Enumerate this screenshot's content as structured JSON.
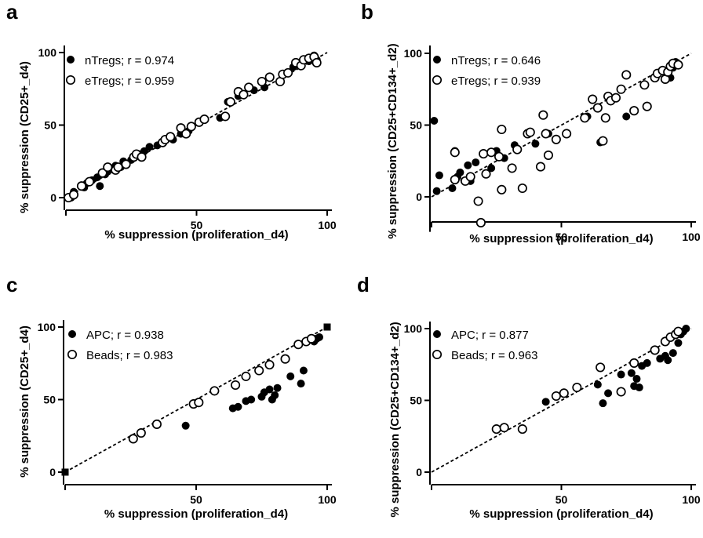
{
  "figure": {
    "panels": [
      {
        "letter": "a",
        "xlabel": "% suppression (proliferation_d4)",
        "ylabel": "% suppression (CD25+_d4)",
        "legend": [
          "nTregs; r = 0.974",
          "eTregs; r = 0.959"
        ]
      },
      {
        "letter": "b",
        "xlabel": "% suppression (proliferation_d4)",
        "ylabel": "% suppression (CD25+CD134+_d2)",
        "legend": [
          "nTregs; r = 0.646",
          "eTregs; r = 0.939"
        ]
      },
      {
        "letter": "c",
        "xlabel": "% suppression (proliferation_d4)",
        "ylabel": "% suppression (CD25+_d4)",
        "legend": [
          "APC; r = 0.938",
          "Beads; r = 0.983"
        ]
      },
      {
        "letter": "d",
        "xlabel": "% suppression (proliferation_d4)",
        "ylabel": "% suppression (CD25+CD134+_d2)",
        "legend": [
          "APC; r = 0.877",
          "Beads; r = 0.963"
        ]
      }
    ]
  },
  "chart_data": [
    {
      "type": "scatter",
      "panel": "a",
      "xlabel": "% suppression (proliferation_d4)",
      "ylabel": "% suppression (CD25+_d4)",
      "xlim": [
        0,
        100
      ],
      "ylim": [
        0,
        100
      ],
      "xticks": [
        0,
        50,
        100
      ],
      "yticks": [
        0,
        50,
        100
      ],
      "xtick_labels": [
        "50",
        "100"
      ],
      "ytick_labels": [
        "0",
        "50",
        "100"
      ],
      "legend_position": "top-left",
      "identity_line": true,
      "series": [
        {
          "name": "nTregs; r = 0.974",
          "marker": "filled-circle",
          "points": [
            [
              2,
              0
            ],
            [
              3,
              4
            ],
            [
              7,
              7
            ],
            [
              8,
              10
            ],
            [
              10,
              12
            ],
            [
              12,
              14
            ],
            [
              13,
              8
            ],
            [
              15,
              16
            ],
            [
              16,
              18
            ],
            [
              18,
              20
            ],
            [
              19,
              22
            ],
            [
              21,
              21
            ],
            [
              22,
              25
            ],
            [
              25,
              26
            ],
            [
              28,
              30
            ],
            [
              30,
              32
            ],
            [
              32,
              35
            ],
            [
              35,
              36
            ],
            [
              41,
              40
            ],
            [
              44,
              44
            ],
            [
              47,
              46
            ],
            [
              59,
              55
            ],
            [
              62,
              66
            ],
            [
              66,
              70
            ],
            [
              72,
              74
            ],
            [
              76,
              76
            ],
            [
              87,
              90
            ],
            [
              90,
              93
            ],
            [
              91,
              95
            ],
            [
              93,
              94
            ],
            [
              94,
              96
            ],
            [
              95,
              98
            ],
            [
              96,
              95
            ]
          ]
        },
        {
          "name": "eTregs; r = 0.959",
          "marker": "open-circle",
          "points": [
            [
              1,
              0
            ],
            [
              3,
              2
            ],
            [
              6,
              8
            ],
            [
              9,
              11
            ],
            [
              14,
              17
            ],
            [
              16,
              21
            ],
            [
              19,
              19
            ],
            [
              20,
              21
            ],
            [
              23,
              23
            ],
            [
              26,
              28
            ],
            [
              27,
              30
            ],
            [
              29,
              28
            ],
            [
              37,
              38
            ],
            [
              38,
              40
            ],
            [
              40,
              42
            ],
            [
              44,
              48
            ],
            [
              46,
              44
            ],
            [
              48,
              49
            ],
            [
              51,
              52
            ],
            [
              53,
              54
            ],
            [
              61,
              56
            ],
            [
              63,
              66
            ],
            [
              66,
              73
            ],
            [
              68,
              71
            ],
            [
              70,
              76
            ],
            [
              75,
              80
            ],
            [
              78,
              83
            ],
            [
              82,
              80
            ],
            [
              83,
              85
            ],
            [
              85,
              86
            ],
            [
              88,
              93
            ],
            [
              90,
              91
            ],
            [
              91,
              95
            ],
            [
              93,
              96
            ],
            [
              95,
              97
            ],
            [
              96,
              93
            ]
          ]
        }
      ]
    },
    {
      "type": "scatter",
      "panel": "b",
      "xlabel": "% suppression (proliferation_d4)",
      "ylabel": "% suppression (CD25+CD134+_d2)",
      "xlim": [
        0,
        100
      ],
      "ylim": [
        -20,
        100
      ],
      "xticks": [
        0,
        50,
        100
      ],
      "yticks": [
        0,
        50,
        100
      ],
      "xtick_labels": [
        "50",
        "100"
      ],
      "ytick_labels": [
        "0",
        "50",
        "100"
      ],
      "legend_position": "top-left",
      "identity_line": true,
      "series": [
        {
          "name": "nTregs; r = 0.646",
          "marker": "filled-circle",
          "points": [
            [
              1,
              53
            ],
            [
              2,
              4
            ],
            [
              3,
              15
            ],
            [
              8,
              6
            ],
            [
              9,
              32
            ],
            [
              10,
              14
            ],
            [
              11,
              17
            ],
            [
              14,
              22
            ],
            [
              15,
              11
            ],
            [
              17,
              24
            ],
            [
              21,
              16
            ],
            [
              23,
              20
            ],
            [
              25,
              32
            ],
            [
              28,
              27
            ],
            [
              32,
              36
            ],
            [
              40,
              37
            ],
            [
              45,
              44
            ],
            [
              60,
              56
            ],
            [
              65,
              38
            ],
            [
              75,
              56
            ],
            [
              92,
              83
            ],
            [
              93,
              90
            ],
            [
              94,
              94
            ]
          ]
        },
        {
          "name": "eTregs; r = 0.939",
          "marker": "open-circle",
          "points": [
            [
              9,
              12
            ],
            [
              9,
              31
            ],
            [
              13,
              11
            ],
            [
              15,
              14
            ],
            [
              18,
              -3
            ],
            [
              19,
              -18
            ],
            [
              20,
              30
            ],
            [
              21,
              16
            ],
            [
              23,
              31
            ],
            [
              26,
              28
            ],
            [
              27,
              47
            ],
            [
              27,
              5
            ],
            [
              31,
              20
            ],
            [
              33,
              33
            ],
            [
              35,
              6
            ],
            [
              37,
              44
            ],
            [
              38,
              45
            ],
            [
              42,
              21
            ],
            [
              43,
              57
            ],
            [
              44,
              44
            ],
            [
              45,
              29
            ],
            [
              48,
              40
            ],
            [
              52,
              44
            ],
            [
              59,
              55
            ],
            [
              62,
              68
            ],
            [
              64,
              62
            ],
            [
              66,
              39
            ],
            [
              67,
              55
            ],
            [
              68,
              70
            ],
            [
              69,
              67
            ],
            [
              71,
              69
            ],
            [
              73,
              75
            ],
            [
              75,
              85
            ],
            [
              78,
              60
            ],
            [
              82,
              78
            ],
            [
              83,
              63
            ],
            [
              86,
              83
            ],
            [
              87,
              86
            ],
            [
              89,
              88
            ],
            [
              90,
              82
            ],
            [
              91,
              87
            ],
            [
              92,
              91
            ],
            [
              93,
              93
            ],
            [
              95,
              92
            ]
          ]
        }
      ]
    },
    {
      "type": "scatter",
      "panel": "c",
      "xlabel": "% suppression (proliferation_d4)",
      "ylabel": "% suppression (CD25+_d4)",
      "xlim": [
        0,
        100
      ],
      "ylim": [
        0,
        100
      ],
      "xticks": [
        0,
        50,
        100
      ],
      "yticks": [
        0,
        50,
        100
      ],
      "xtick_labels": [
        "50",
        "100"
      ],
      "ytick_labels": [
        "0",
        "50",
        "100"
      ],
      "legend_position": "top-left",
      "identity_line": true,
      "series": [
        {
          "name": "APC; r = 0.938",
          "marker": "filled-circle",
          "points": [
            [
              46,
              32
            ],
            [
              64,
              44
            ],
            [
              66,
              45
            ],
            [
              69,
              49
            ],
            [
              71,
              50
            ],
            [
              75,
              52
            ],
            [
              76,
              55
            ],
            [
              78,
              57
            ],
            [
              79,
              50
            ],
            [
              80,
              53
            ],
            [
              81,
              58
            ],
            [
              86,
              66
            ],
            [
              90,
              61
            ],
            [
              91,
              70
            ],
            [
              95,
              90
            ],
            [
              96,
              92
            ],
            [
              97,
              93
            ]
          ]
        },
        {
          "name": "Beads; r = 0.983",
          "marker": "open-circle",
          "points": [
            [
              26,
              23
            ],
            [
              29,
              27
            ],
            [
              35,
              33
            ],
            [
              49,
              47
            ],
            [
              51,
              48
            ],
            [
              57,
              56
            ],
            [
              65,
              60
            ],
            [
              69,
              66
            ],
            [
              74,
              70
            ],
            [
              78,
              74
            ],
            [
              84,
              78
            ],
            [
              89,
              88
            ],
            [
              92,
              90
            ],
            [
              94,
              92
            ]
          ]
        },
        {
          "name": "",
          "marker": "filled-square",
          "points": [
            [
              0,
              0
            ],
            [
              100,
              100
            ]
          ]
        }
      ]
    },
    {
      "type": "scatter",
      "panel": "d",
      "xlabel": "% suppression (proliferation_d4)",
      "ylabel": "% suppression (CD25+CD134+_d2)",
      "xlim": [
        0,
        100
      ],
      "ylim": [
        0,
        100
      ],
      "xticks": [
        0,
        50,
        100
      ],
      "yticks": [
        0,
        50,
        100
      ],
      "xtick_labels": [
        "50",
        "100"
      ],
      "ytick_labels": [
        "0",
        "50",
        "100"
      ],
      "legend_position": "top-left",
      "identity_line": true,
      "series": [
        {
          "name": "APC; r = 0.877",
          "marker": "filled-circle",
          "points": [
            [
              44,
              49
            ],
            [
              64,
              61
            ],
            [
              66,
              48
            ],
            [
              68,
              55
            ],
            [
              73,
              68
            ],
            [
              77,
              69
            ],
            [
              78,
              60
            ],
            [
              79,
              65
            ],
            [
              80,
              59
            ],
            [
              81,
              74
            ],
            [
              83,
              76
            ],
            [
              88,
              79
            ],
            [
              90,
              81
            ],
            [
              91,
              78
            ],
            [
              93,
              83
            ],
            [
              95,
              90
            ],
            [
              96,
              96
            ],
            [
              97,
              98
            ],
            [
              98,
              100
            ]
          ]
        },
        {
          "name": "Beads; r = 0.963",
          "marker": "open-circle",
          "points": [
            [
              25,
              30
            ],
            [
              28,
              31
            ],
            [
              35,
              30
            ],
            [
              48,
              53
            ],
            [
              51,
              55
            ],
            [
              56,
              59
            ],
            [
              65,
              73
            ],
            [
              73,
              56
            ],
            [
              78,
              76
            ],
            [
              86,
              85
            ],
            [
              90,
              91
            ],
            [
              92,
              94
            ],
            [
              94,
              96
            ],
            [
              95,
              98
            ]
          ]
        }
      ]
    }
  ]
}
